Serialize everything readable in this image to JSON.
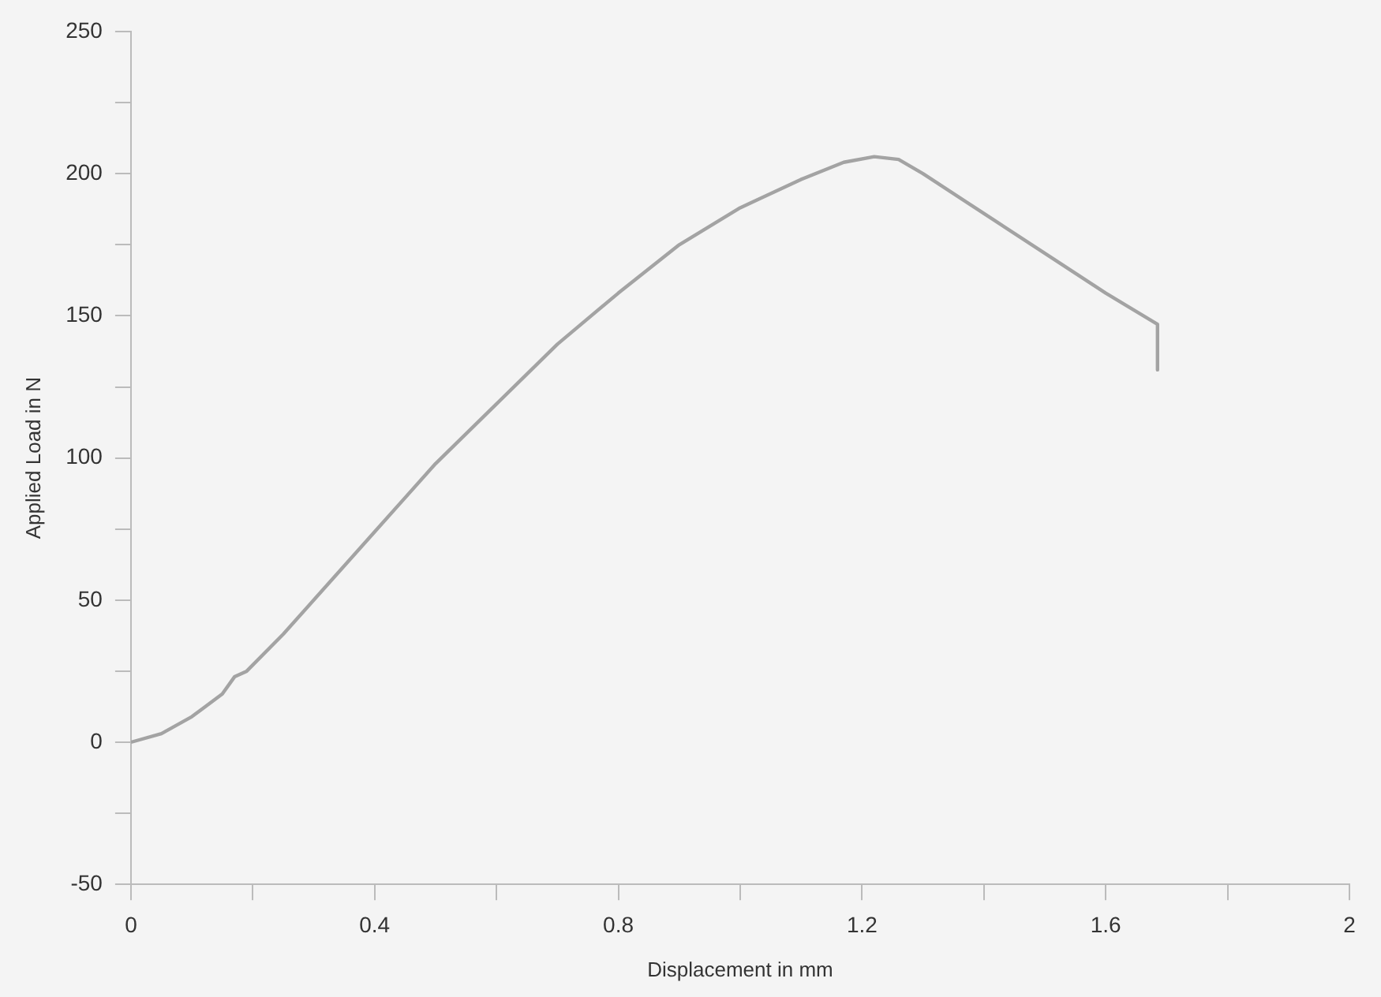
{
  "chart_data": {
    "type": "line",
    "xlabel": "Displacement in mm",
    "ylabel": "Applied Load in N",
    "xlim": [
      0,
      2
    ],
    "ylim": [
      -50,
      250
    ],
    "xticks": [
      0,
      {
        "value": 0.2,
        "label": null
      },
      0.4,
      {
        "value": 0.6,
        "label": null
      },
      0.8,
      {
        "value": 1.0,
        "label": null
      },
      1.2,
      {
        "value": 1.4,
        "label": null
      },
      1.6,
      {
        "value": 1.8,
        "label": null
      },
      2
    ],
    "yticks": [
      -50,
      {
        "value": -25,
        "label": null
      },
      0,
      {
        "value": 25,
        "label": null
      },
      50,
      {
        "value": 75,
        "label": null
      },
      100,
      {
        "value": 125,
        "label": null
      },
      150,
      {
        "value": 175,
        "label": null
      },
      200,
      {
        "value": 225,
        "label": null
      },
      250
    ],
    "grid": false,
    "marker": "none",
    "line_style": "solid",
    "series": [
      {
        "color": "#a3a3a3",
        "x": [
          0,
          0.05,
          0.1,
          0.15,
          0.17,
          0.19,
          0.25,
          0.3,
          0.4,
          0.5,
          0.6,
          0.7,
          0.8,
          0.9,
          1.0,
          1.1,
          1.17,
          1.22,
          1.26,
          1.3,
          1.4,
          1.5,
          1.6,
          1.685,
          1.685
        ],
        "values": [
          0,
          3,
          9,
          17,
          23,
          25,
          38,
          50,
          74,
          98,
          119,
          140,
          158,
          175,
          188,
          198,
          204,
          206,
          205,
          200,
          186,
          172,
          158,
          147,
          131
        ]
      }
    ]
  }
}
